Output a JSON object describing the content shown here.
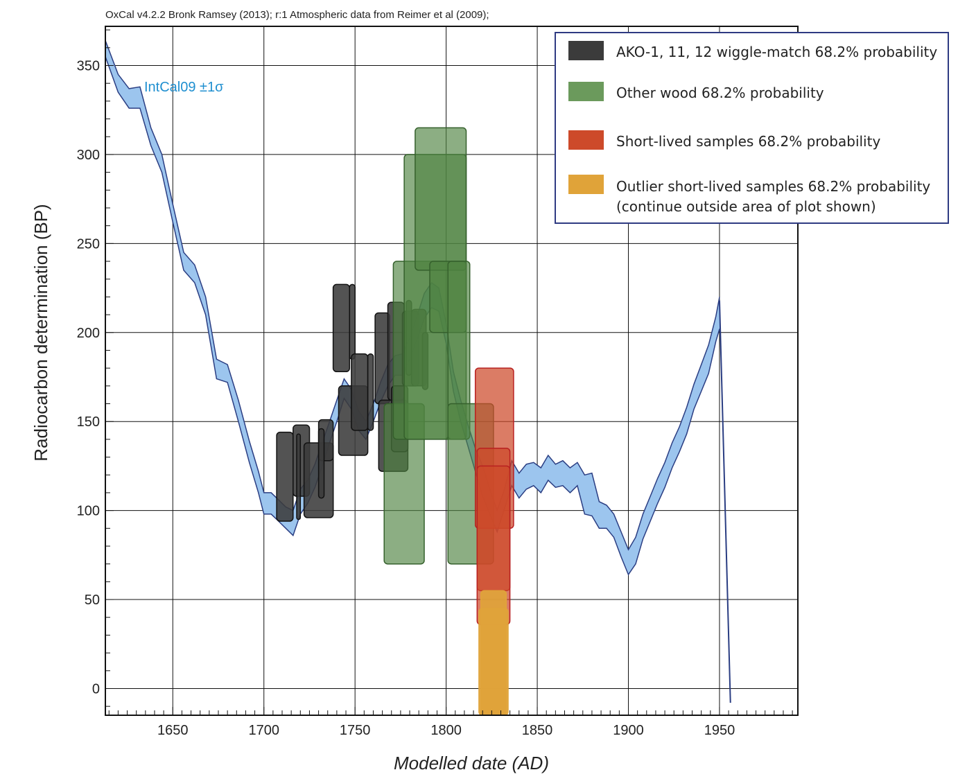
{
  "header": "OxCal v4.2.2 Bronk Ramsey (2013); r:1 Atmospheric data from Reimer et al (2009);",
  "chart_data": {
    "type": "area",
    "title": "",
    "xlabel": "Modelled date (AD)",
    "ylabel": "Radiocarbon determination (BP)",
    "xlim": [
      1613,
      1993
    ],
    "ylim": [
      -15,
      372
    ],
    "x_ticks": [
      1650,
      1700,
      1750,
      1800,
      1850,
      1900,
      1950
    ],
    "y_ticks": [
      0,
      50,
      100,
      150,
      200,
      250,
      300,
      350
    ],
    "grid": true,
    "legend_position": "top-right",
    "curve": {
      "label": "IntCal09 ±1σ",
      "color": "#9cc5ee",
      "line_color": "#2a3d82",
      "x": [
        1613,
        1620,
        1626,
        1632,
        1638,
        1644,
        1650,
        1656,
        1662,
        1668,
        1674,
        1680,
        1686,
        1692,
        1697,
        1700,
        1704,
        1708,
        1712,
        1716,
        1720,
        1724,
        1728,
        1732,
        1736,
        1740,
        1744,
        1748,
        1752,
        1756,
        1760,
        1764,
        1768,
        1772,
        1776,
        1780,
        1784,
        1788,
        1792,
        1796,
        1800,
        1804,
        1808,
        1812,
        1816,
        1820,
        1824,
        1828,
        1832,
        1836,
        1840,
        1844,
        1848,
        1852,
        1856,
        1860,
        1864,
        1868,
        1872,
        1876,
        1880,
        1884,
        1888,
        1892,
        1896,
        1900,
        1904,
        1908,
        1912,
        1916,
        1920,
        1924,
        1928,
        1932,
        1936,
        1940,
        1944,
        1948,
        1950
      ],
      "upper": [
        364,
        345,
        337,
        338,
        315,
        300,
        272,
        245,
        238,
        220,
        185,
        182,
        162,
        139,
        122,
        110,
        110,
        106,
        102,
        100,
        112,
        117,
        126,
        138,
        150,
        162,
        174,
        168,
        156,
        150,
        160,
        172,
        182,
        187,
        188,
        197,
        209,
        222,
        228,
        225,
        205,
        178,
        162,
        148,
        135,
        125,
        112,
        100,
        112,
        128,
        121,
        126,
        127,
        124,
        131,
        126,
        128,
        124,
        127,
        120,
        121,
        105,
        103,
        98,
        88,
        78,
        85,
        98,
        108,
        118,
        127,
        138,
        147,
        158,
        171,
        182,
        193,
        209,
        220
      ],
      "lower": [
        355,
        335,
        326,
        326,
        305,
        290,
        262,
        235,
        228,
        210,
        174,
        172,
        150,
        127,
        110,
        98,
        98,
        94,
        90,
        86,
        98,
        104,
        113,
        125,
        138,
        150,
        163,
        157,
        145,
        140,
        150,
        161,
        170,
        176,
        176,
        185,
        196,
        208,
        214,
        212,
        194,
        167,
        150,
        136,
        122,
        108,
        98,
        88,
        101,
        114,
        107,
        112,
        114,
        110,
        117,
        113,
        114,
        110,
        114,
        98,
        97,
        90,
        90,
        85,
        74,
        64,
        70,
        84,
        94,
        104,
        113,
        124,
        133,
        143,
        157,
        167,
        177,
        195,
        202
      ],
      "drop": {
        "x": [
          1950,
          1956
        ],
        "y": [
          218,
          -8
        ]
      }
    },
    "series": [
      {
        "name": "AKO-1, 11, 12  wiggle-match 68.2% probability",
        "color": "#3b3b3b",
        "boxes": [
          {
            "x0": 1707,
            "x1": 1716,
            "y0": 94,
            "y1": 144
          },
          {
            "x0": 1716,
            "x1": 1725,
            "y0": 108,
            "y1": 148
          },
          {
            "x0": 1718,
            "x1": 1720,
            "y0": 95,
            "y1": 143
          },
          {
            "x0": 1722,
            "x1": 1738,
            "y0": 96,
            "y1": 138
          },
          {
            "x0": 1730,
            "x1": 1738,
            "y0": 128,
            "y1": 151
          },
          {
            "x0": 1730,
            "x1": 1733,
            "y0": 107,
            "y1": 146
          },
          {
            "x0": 1738,
            "x1": 1747,
            "y0": 178,
            "y1": 227
          },
          {
            "x0": 1741,
            "x1": 1757,
            "y0": 131,
            "y1": 170
          },
          {
            "x0": 1747,
            "x1": 1750,
            "y0": 185,
            "y1": 227
          },
          {
            "x0": 1748,
            "x1": 1757,
            "y0": 145,
            "y1": 188
          },
          {
            "x0": 1761,
            "x1": 1769,
            "y0": 160,
            "y1": 211
          },
          {
            "x0": 1757,
            "x1": 1760,
            "y0": 145,
            "y1": 188
          },
          {
            "x0": 1763,
            "x1": 1779,
            "y0": 122,
            "y1": 162
          },
          {
            "x0": 1768,
            "x1": 1777,
            "y0": 162,
            "y1": 217
          },
          {
            "x0": 1770,
            "x1": 1779,
            "y0": 133,
            "y1": 170
          },
          {
            "x0": 1776,
            "x1": 1785,
            "y0": 170,
            "y1": 212
          },
          {
            "x0": 1778,
            "x1": 1781,
            "y0": 176,
            "y1": 218
          },
          {
            "x0": 1781,
            "x1": 1789,
            "y0": 170,
            "y1": 213
          },
          {
            "x0": 1787,
            "x1": 1790,
            "y0": 168,
            "y1": 200
          }
        ]
      },
      {
        "name": "Other wood 68.2% probability",
        "color": "#6b9a5c",
        "boxes": [
          {
            "x0": 1766,
            "x1": 1788,
            "y0": 70,
            "y1": 160
          },
          {
            "x0": 1771,
            "x1": 1801,
            "y0": 140,
            "y1": 240
          },
          {
            "x0": 1777,
            "x1": 1811,
            "y0": 140,
            "y1": 300
          },
          {
            "x0": 1783,
            "x1": 1811,
            "y0": 235,
            "y1": 315
          },
          {
            "x0": 1791,
            "x1": 1811,
            "y0": 200,
            "y1": 240
          },
          {
            "x0": 1801,
            "x1": 1813,
            "y0": 140,
            "y1": 240
          },
          {
            "x0": 1801,
            "x1": 1826,
            "y0": 70,
            "y1": 160
          }
        ]
      },
      {
        "name": "Short-lived samples 68.2% probability",
        "color": "#cd4a2a",
        "boxes": [
          {
            "x0": 1816,
            "x1": 1837,
            "y0": 90,
            "y1": 180
          },
          {
            "x0": 1817,
            "x1": 1835,
            "y0": 55,
            "y1": 135
          },
          {
            "x0": 1817,
            "x1": 1835,
            "y0": 36,
            "y1": 125
          }
        ]
      },
      {
        "name": "Outlier short-lived samples 68.2% probability",
        "note": "(continue outside area of plot shown)",
        "color": "#e0a339",
        "boxes": [
          {
            "x0": 1818,
            "x1": 1834,
            "y0": -15,
            "y1": 45
          },
          {
            "x0": 1819,
            "x1": 1833,
            "y0": -15,
            "y1": 55
          }
        ]
      }
    ]
  }
}
